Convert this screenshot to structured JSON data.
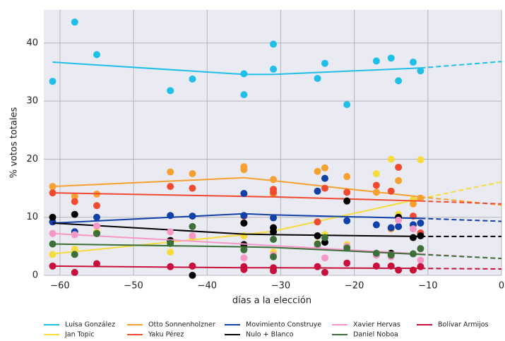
{
  "chart_data": {
    "type": "scatter",
    "xlabel": "días a la elección",
    "ylabel": "% votos totales",
    "xlim": [
      -62.2,
      0
    ],
    "ylim": [
      0,
      45.7
    ],
    "xticks": [
      {
        "value": -60,
        "label": "−60"
      },
      {
        "value": -50,
        "label": "−50"
      },
      {
        "value": -40,
        "label": "−40"
      },
      {
        "value": -30,
        "label": "−30"
      },
      {
        "value": -20,
        "label": "−20"
      },
      {
        "value": -10,
        "label": "−10"
      },
      0
    ],
    "yticks": [
      0,
      10,
      20,
      30,
      40
    ],
    "grid": true,
    "trend_x": [
      -61,
      -35,
      -31,
      -11,
      0
    ],
    "series": [
      {
        "name": "Luisa González",
        "color": "#1fbfe8",
        "x": [
          -61,
          -58,
          -55,
          -45,
          -42,
          -35,
          -35,
          -31,
          -31,
          -25,
          -24,
          -21,
          -17,
          -15,
          -14,
          -12,
          -11
        ],
        "values": [
          33.4,
          43.6,
          38,
          31.8,
          33.8,
          34.7,
          31.1,
          39.8,
          35.5,
          33.9,
          36.5,
          29.4,
          36.9,
          37.4,
          33.5,
          36.7,
          35.2
        ],
        "trend": [
          36.7,
          34.6,
          34.6,
          35.7,
          36.8
        ]
      },
      {
        "name": "Jan Topic",
        "color": "#f5dc3c",
        "x": [
          -61,
          -58,
          -55,
          -45,
          -42,
          -35,
          -31,
          -25,
          -24,
          -21,
          -17,
          -15,
          -14,
          -12,
          -11
        ],
        "values": [
          3.6,
          4.5,
          7.5,
          4.0,
          6.5,
          6.8,
          4.0,
          5.5,
          7.0,
          5.3,
          17.5,
          20,
          10.5,
          13.0,
          19.9
        ],
        "trend": [
          3.7,
          7.0,
          7.6,
          13.2,
          16.1
        ]
      },
      {
        "name": "Otto Sonnenholzner",
        "color": "#f5a030",
        "x": [
          -61,
          -58,
          -55,
          -45,
          -42,
          -35,
          -35,
          -31,
          -31,
          -25,
          -24,
          -21,
          -17,
          -15,
          -14,
          -12,
          -11
        ],
        "values": [
          15.3,
          13.6,
          14,
          17.8,
          17.5,
          18.7,
          18.2,
          16.5,
          14.0,
          17.9,
          18.5,
          17,
          14.3,
          8.0,
          16.3,
          12.3,
          13.3
        ],
        "trend": [
          15.3,
          16.8,
          16.3,
          13.5,
          12.1
        ]
      },
      {
        "name": "Yaku Pérez",
        "color": "#f04a30",
        "x": [
          -61,
          -58,
          -55,
          -45,
          -42,
          -35,
          -31,
          -31,
          -25,
          -24,
          -21,
          -17,
          -15,
          -14,
          -12,
          -11
        ],
        "values": [
          14.2,
          12.7,
          12.0,
          15.3,
          15,
          10.2,
          14.8,
          14.3,
          9.2,
          15,
          14.3,
          15.5,
          14.5,
          18.6,
          10.2,
          7.3
        ],
        "trend": [
          14.2,
          13.6,
          13.5,
          12.8,
          12.3
        ]
      },
      {
        "name": "Movimiento Construye",
        "color": "#1040a8",
        "x": [
          -61,
          -58,
          -55,
          -45,
          -42,
          -35,
          -35,
          -31,
          -25,
          -24,
          -21,
          -17,
          -15,
          -14,
          -12,
          -11
        ],
        "values": [
          9.2,
          7.5,
          10,
          10.3,
          10.2,
          14.1,
          10.3,
          9.9,
          14.5,
          16.7,
          9.4,
          8.7,
          8.2,
          8.4,
          8.7,
          9.0
        ],
        "trend": [
          9.0,
          10.6,
          10.4,
          9.8,
          9.3
        ]
      },
      {
        "name": "Nulo + Blanco",
        "color": "#000000",
        "x": [
          -61,
          -58,
          -55,
          -45,
          -42,
          -35,
          -35,
          -31,
          -31,
          -25,
          -24,
          -21,
          -17,
          -15,
          -14,
          -12,
          -11
        ],
        "values": [
          10,
          10.5,
          7.2,
          6,
          0,
          9.0,
          5.3,
          7.5,
          8.2,
          6.8,
          5.7,
          12.8,
          3.5,
          3.8,
          10.0,
          6.5,
          6.8
        ],
        "trend": [
          9.0,
          7.1,
          7.0,
          6.7,
          6.7
        ]
      },
      {
        "name": "Xavier Hervas",
        "color": "#f598c8",
        "x": [
          -61,
          -58,
          -55,
          -45,
          -42,
          -35,
          -31,
          -25,
          -24,
          -21,
          -17,
          -15,
          -14,
          -12,
          -11
        ],
        "values": [
          7.2,
          7.0,
          8.5,
          7.5,
          6.8,
          3.0,
          3.5,
          5.0,
          3.0,
          5.0,
          3.5,
          3.2,
          9.5,
          8.0,
          2.6
        ],
        "trend": [
          7.2,
          5.4,
          5.1,
          3.7,
          2.9
        ]
      },
      {
        "name": "Daniel Noboa",
        "color": "#3c7038",
        "x": [
          -61,
          -58,
          -55,
          -45,
          -42,
          -35,
          -31,
          -31,
          -25,
          -24,
          -21,
          -17,
          -15,
          -12,
          -11
        ],
        "values": [
          5.4,
          3.6,
          7.2,
          5.5,
          8.4,
          4.4,
          6.2,
          3.2,
          5.4,
          6.5,
          4.7,
          3.8,
          3.5,
          3.7,
          4.6
        ],
        "trend": [
          5.4,
          4.9,
          4.8,
          3.6,
          2.9
        ]
      },
      {
        "name": "Bolívar Armijos",
        "color": "#c8103c",
        "x": [
          -61,
          -58,
          -55,
          -45,
          -42,
          -35,
          -35,
          -31,
          -31,
          -25,
          -24,
          -21,
          -17,
          -15,
          -14,
          -12,
          -11
        ],
        "values": [
          1.6,
          0.5,
          2.0,
          1.5,
          1.6,
          1.5,
          1.0,
          1.3,
          0.8,
          1.5,
          0.5,
          2.1,
          1.6,
          1.6,
          0.9,
          0.9,
          1.5
        ],
        "trend": [
          1.6,
          1.3,
          1.3,
          1.2,
          1.1
        ]
      }
    ]
  }
}
